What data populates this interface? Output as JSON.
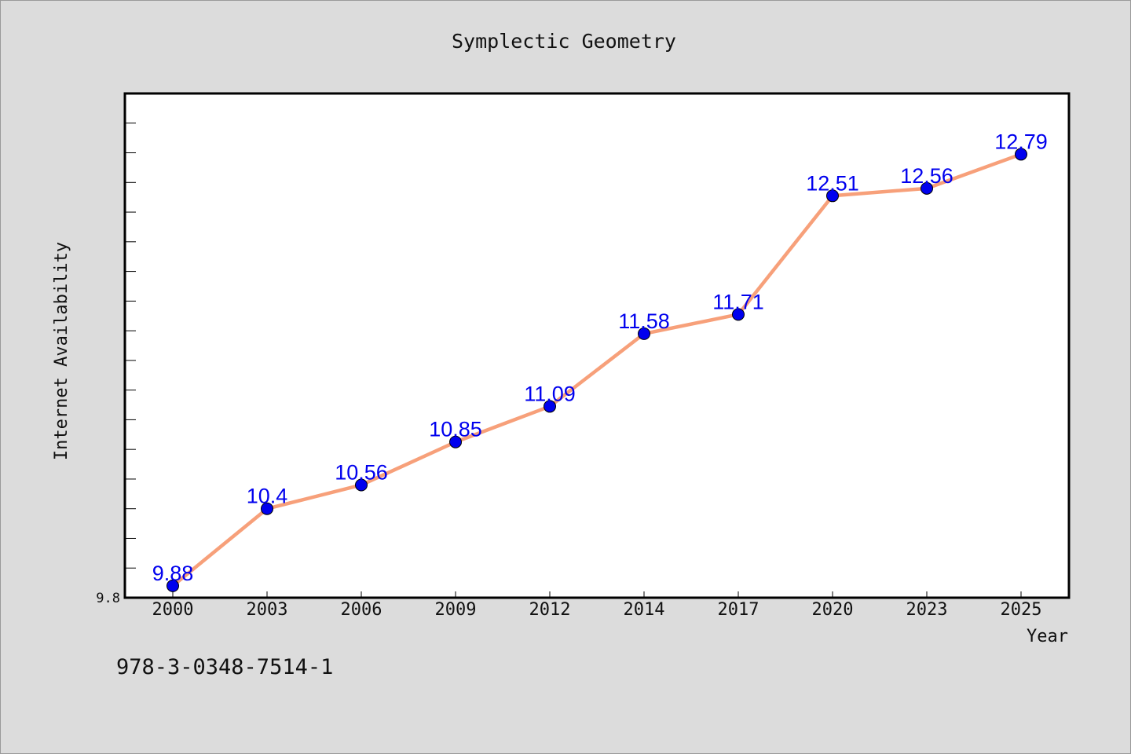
{
  "chart_data": {
    "type": "line",
    "title": "Symplectic Geometry",
    "xlabel": "Year",
    "ylabel": "Internet Availability",
    "categories": [
      "2000",
      "2003",
      "2006",
      "2009",
      "2012",
      "2014",
      "2017",
      "2020",
      "2023",
      "2025"
    ],
    "series": [
      {
        "values": [
          9.88,
          10.4,
          10.56,
          10.85,
          11.09,
          11.58,
          11.71,
          12.51,
          12.56,
          12.79
        ],
        "data_labels": [
          "9.88",
          "10.4",
          "10.56",
          "10.85",
          "11.09",
          "11.58",
          "11.71",
          "12.51",
          "12.56",
          "12.79"
        ],
        "line_color": "#f7a07a",
        "marker_color": "#0000ee"
      }
    ],
    "y_tick_labels": [
      "9.8"
    ],
    "ylim": [
      9.8,
      13.2
    ],
    "grid": false,
    "legend": "none"
  },
  "footer": {
    "isbn": "978-3-0348-7514-1"
  },
  "colors": {
    "background": "#dcdcdc",
    "plot_background": "#ffffff",
    "label_color": "#0000ee",
    "line_color": "#f7a07a"
  }
}
